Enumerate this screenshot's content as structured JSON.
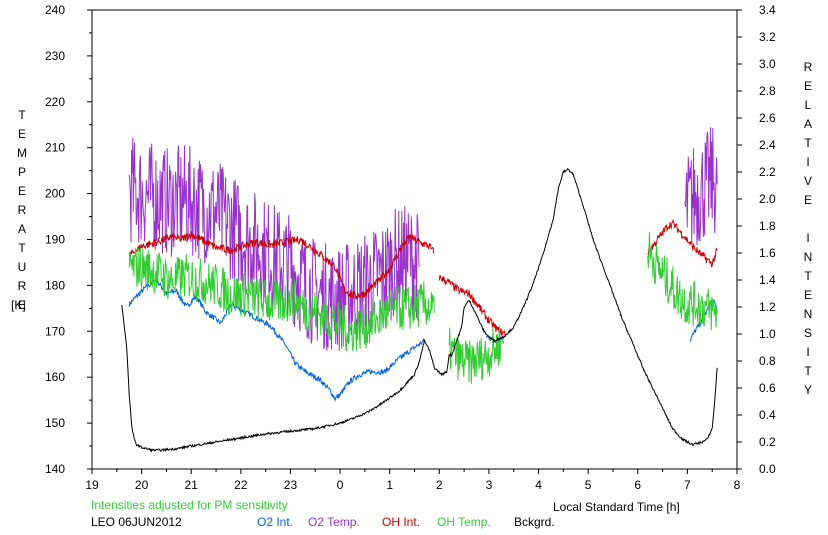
{
  "chart_data": {
    "type": "line",
    "ylabel_left": "TEMPERATURE",
    "ylabel_left_unit": "[K]",
    "ylabel_right": "RELATIVE INTENSITY",
    "xlabel": "Local Standard Time [h]",
    "note": "Intensities adjusted for PM sensitivity",
    "station_date": "LEO 06JUN2012",
    "grid": false,
    "xlim": [
      19,
      32
    ],
    "ylim_left": [
      140,
      240
    ],
    "ylim_right": [
      0.0,
      3.4
    ],
    "x_tick_values": [
      19,
      20,
      21,
      22,
      23,
      24,
      25,
      26,
      27,
      28,
      29,
      30,
      31,
      32
    ],
    "x_tick_labels": [
      "19",
      "20",
      "21",
      "22",
      "23",
      "0",
      "1",
      "2",
      "3",
      "4",
      "5",
      "6",
      "7",
      "8"
    ],
    "y_left_ticks": [
      "140",
      "150",
      "160",
      "170",
      "180",
      "190",
      "200",
      "210",
      "220",
      "230",
      "240"
    ],
    "y_right_ticks": [
      "0.0",
      "0.2",
      "0.4",
      "0.6",
      "0.8",
      "1.0",
      "1.2",
      "1.4",
      "1.6",
      "1.8",
      "2.0",
      "2.2",
      "2.4",
      "2.6",
      "2.8",
      "3.0",
      "3.2",
      "3.4"
    ],
    "legend_position": "bottom",
    "series": [
      {
        "name": "O2 Int.",
        "color": "#0066dd",
        "axis": "right",
        "noise": 0.02,
        "x": [
          19.75,
          19.9,
          20.1,
          20.3,
          20.5,
          20.7,
          20.9,
          21.1,
          21.3,
          21.6,
          21.8,
          22.0,
          22.3,
          22.6,
          22.9,
          23.1,
          23.3,
          23.6,
          23.8,
          23.9,
          24.0,
          24.2,
          24.4,
          24.6,
          24.9,
          25.2,
          25.5,
          25.7,
          null,
          26.95,
          27.15,
          27.3,
          null,
          31.05,
          31.15,
          31.3,
          31.5,
          31.6
        ],
        "y": [
          1.22,
          1.28,
          1.35,
          1.4,
          1.3,
          1.32,
          1.2,
          1.28,
          1.16,
          1.08,
          1.22,
          1.18,
          1.12,
          1.06,
          0.92,
          0.78,
          0.72,
          0.66,
          0.58,
          0.52,
          0.55,
          0.65,
          0.7,
          0.72,
          0.72,
          0.82,
          0.9,
          0.95,
          null,
          0.98,
          0.95,
          0.98,
          null,
          0.95,
          1.02,
          1.1,
          1.25,
          1.2
        ]
      },
      {
        "name": "O2 Temp.",
        "color": "#9933cc",
        "axis": "left",
        "noise": 12,
        "x": [
          19.75,
          20.0,
          20.3,
          20.6,
          20.9,
          21.2,
          21.5,
          21.8,
          22.1,
          22.4,
          22.7,
          23.0,
          23.3,
          23.6,
          23.9,
          24.2,
          24.5,
          24.8,
          25.1,
          25.4,
          25.6,
          null,
          30.95,
          31.1,
          31.3,
          31.5,
          31.6
        ],
        "y": [
          201,
          200,
          199,
          198,
          199,
          197,
          196,
          193,
          190,
          188,
          186,
          184,
          180,
          178,
          177,
          178,
          180,
          182,
          185,
          186,
          184,
          null,
          196,
          199,
          201,
          203,
          202
        ]
      },
      {
        "name": "OH Int.",
        "color": "#cc0000",
        "axis": "right",
        "noise": 0.03,
        "x": [
          19.75,
          20.0,
          20.3,
          20.6,
          20.8,
          21.0,
          21.2,
          21.5,
          21.8,
          22.1,
          22.3,
          22.6,
          22.9,
          23.2,
          23.5,
          23.7,
          23.9,
          24.0,
          24.1,
          24.3,
          24.5,
          24.8,
          25.0,
          25.2,
          25.4,
          25.6,
          25.8,
          25.9,
          null,
          26.0,
          26.2,
          26.4,
          26.6,
          26.8,
          27.0,
          27.2,
          27.35,
          null,
          30.2,
          30.4,
          30.6,
          30.7,
          30.9,
          31.1,
          31.3,
          31.5,
          31.6
        ],
        "y": [
          1.58,
          1.65,
          1.68,
          1.72,
          1.7,
          1.74,
          1.7,
          1.64,
          1.62,
          1.66,
          1.68,
          1.66,
          1.68,
          1.7,
          1.62,
          1.56,
          1.5,
          1.4,
          1.32,
          1.28,
          1.3,
          1.4,
          1.48,
          1.62,
          1.72,
          1.68,
          1.65,
          1.6,
          null,
          1.42,
          1.38,
          1.32,
          1.3,
          1.2,
          1.1,
          1.02,
          1.0,
          null,
          1.6,
          1.7,
          1.8,
          1.82,
          1.74,
          1.65,
          1.58,
          1.52,
          1.62
        ]
      },
      {
        "name": "OH Temp.",
        "color": "#33cc33",
        "axis": "left",
        "noise": 5,
        "x": [
          19.75,
          20.0,
          20.3,
          20.6,
          20.9,
          21.2,
          21.5,
          21.8,
          22.1,
          22.4,
          22.7,
          23.0,
          23.3,
          23.6,
          23.9,
          24.2,
          24.5,
          24.8,
          25.1,
          25.4,
          25.7,
          25.9,
          null,
          26.2,
          26.4,
          26.6,
          26.8,
          27.0,
          27.2,
          27.3,
          null,
          30.2,
          30.4,
          30.6,
          30.8,
          31.0,
          31.2,
          31.4,
          31.6
        ],
        "y": [
          184,
          184,
          183,
          181,
          182,
          181,
          180,
          178,
          178,
          177,
          176,
          177,
          175,
          174,
          172,
          170,
          171,
          173,
          175,
          175,
          176,
          174,
          null,
          166,
          164,
          163,
          164,
          165,
          167,
          168,
          null,
          188,
          184,
          181,
          178,
          176,
          176,
          175,
          174
        ]
      },
      {
        "name": "Bckgrd.",
        "color": "#000000",
        "axis": "right",
        "noise": 0.008,
        "x": [
          19.6,
          19.7,
          19.75,
          19.8,
          19.85,
          19.9,
          19.95,
          20.0,
          20.1,
          20.2,
          20.4,
          20.7,
          21.0,
          21.5,
          22.0,
          22.5,
          23.0,
          23.5,
          24.0,
          24.3,
          24.6,
          24.9,
          25.2,
          25.5,
          25.6,
          25.7,
          25.8,
          25.9,
          26.05,
          26.15,
          26.2,
          26.25,
          26.35,
          26.45,
          26.5,
          26.6,
          26.7,
          26.8,
          26.9,
          27.0,
          27.1,
          27.3,
          27.5,
          27.7,
          27.9,
          28.1,
          28.3,
          28.4,
          28.5,
          28.6,
          28.7,
          28.9,
          29.1,
          29.3,
          29.5,
          29.7,
          29.9,
          30.1,
          30.3,
          30.5,
          30.7,
          30.9,
          31.1,
          31.3,
          31.4,
          31.5,
          31.55,
          31.6
        ],
        "y": [
          1.22,
          0.9,
          0.55,
          0.32,
          0.22,
          0.18,
          0.17,
          0.16,
          0.15,
          0.14,
          0.14,
          0.15,
          0.17,
          0.2,
          0.23,
          0.26,
          0.28,
          0.3,
          0.34,
          0.38,
          0.43,
          0.5,
          0.58,
          0.7,
          0.8,
          0.95,
          0.88,
          0.75,
          0.7,
          0.72,
          0.85,
          0.84,
          0.95,
          1.05,
          1.2,
          1.25,
          1.18,
          1.1,
          1.02,
          0.98,
          0.95,
          0.98,
          1.05,
          1.2,
          1.38,
          1.6,
          1.86,
          2.08,
          2.2,
          2.22,
          2.18,
          1.95,
          1.7,
          1.5,
          1.3,
          1.1,
          0.93,
          0.75,
          0.6,
          0.45,
          0.3,
          0.22,
          0.18,
          0.2,
          0.22,
          0.3,
          0.5,
          0.75
        ]
      }
    ]
  }
}
